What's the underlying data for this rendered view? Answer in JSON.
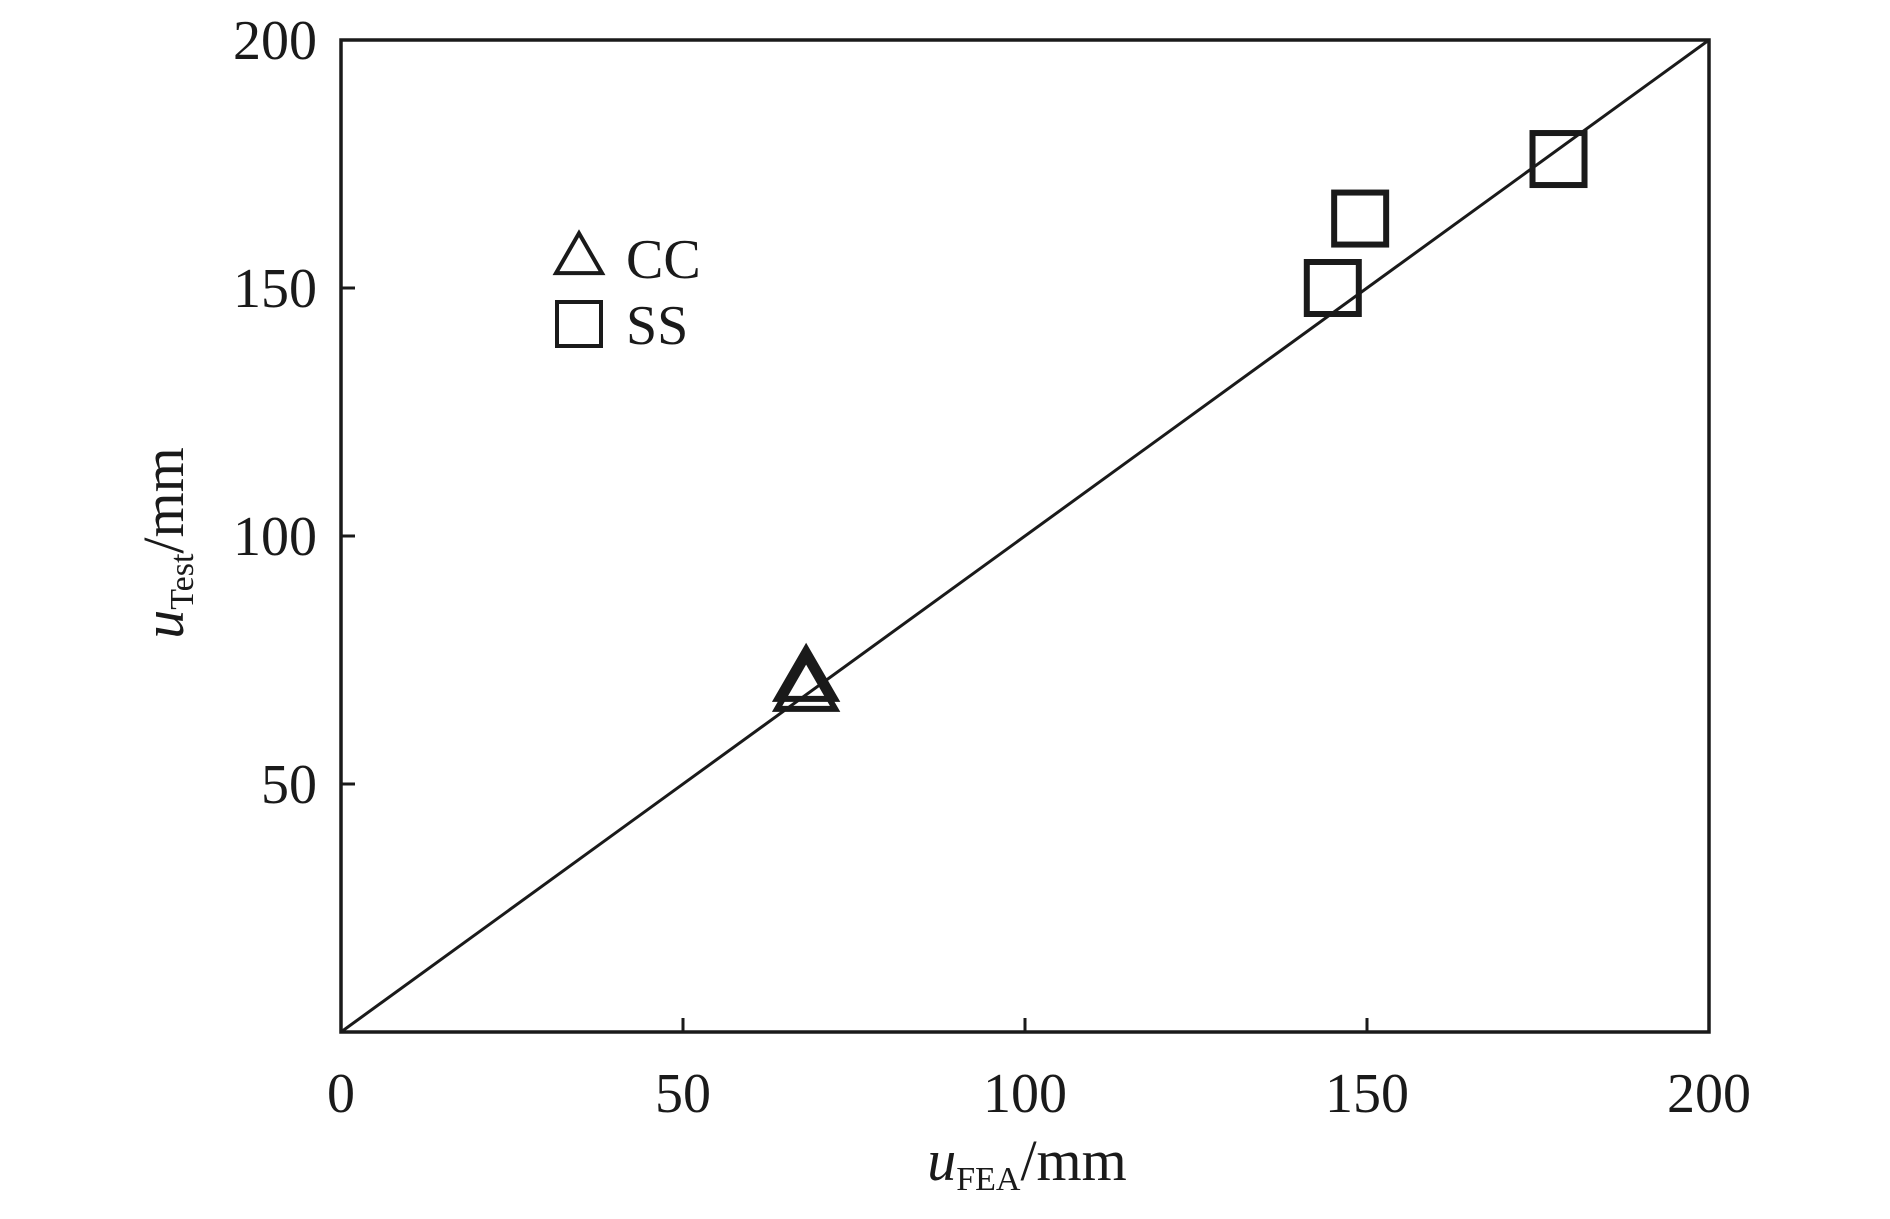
{
  "chart_data": {
    "type": "scatter",
    "xlabel": {
      "symbol": "u",
      "subscript": "FEA",
      "unit": "/mm"
    },
    "ylabel": {
      "symbol": "u",
      "subscript": "Test",
      "unit": "/mm"
    },
    "xlim": [
      0,
      200
    ],
    "ylim": [
      0,
      200
    ],
    "x_ticks": [
      0,
      50,
      100,
      150,
      200
    ],
    "y_ticks": [
      50,
      100,
      150,
      200
    ],
    "x_tick_labels": [
      "0",
      "50",
      "100",
      "150",
      "200"
    ],
    "y_tick_labels": [
      "50",
      "100",
      "150",
      "200"
    ],
    "grid": false,
    "legend_position": "upper-left",
    "reference_line": {
      "type": "y = x",
      "from": [
        0,
        0
      ],
      "to": [
        200,
        200
      ]
    },
    "series": [
      {
        "name": "CC",
        "marker": "triangle",
        "points": [
          {
            "x": 68,
            "y": 71
          },
          {
            "x": 68,
            "y": 69
          }
        ]
      },
      {
        "name": "SS",
        "marker": "square",
        "points": [
          {
            "x": 145,
            "y": 150
          },
          {
            "x": 149,
            "y": 164
          },
          {
            "x": 178,
            "y": 176
          }
        ]
      }
    ],
    "colors": {
      "ink": "#1a1a1a",
      "background": "#ffffff"
    }
  }
}
